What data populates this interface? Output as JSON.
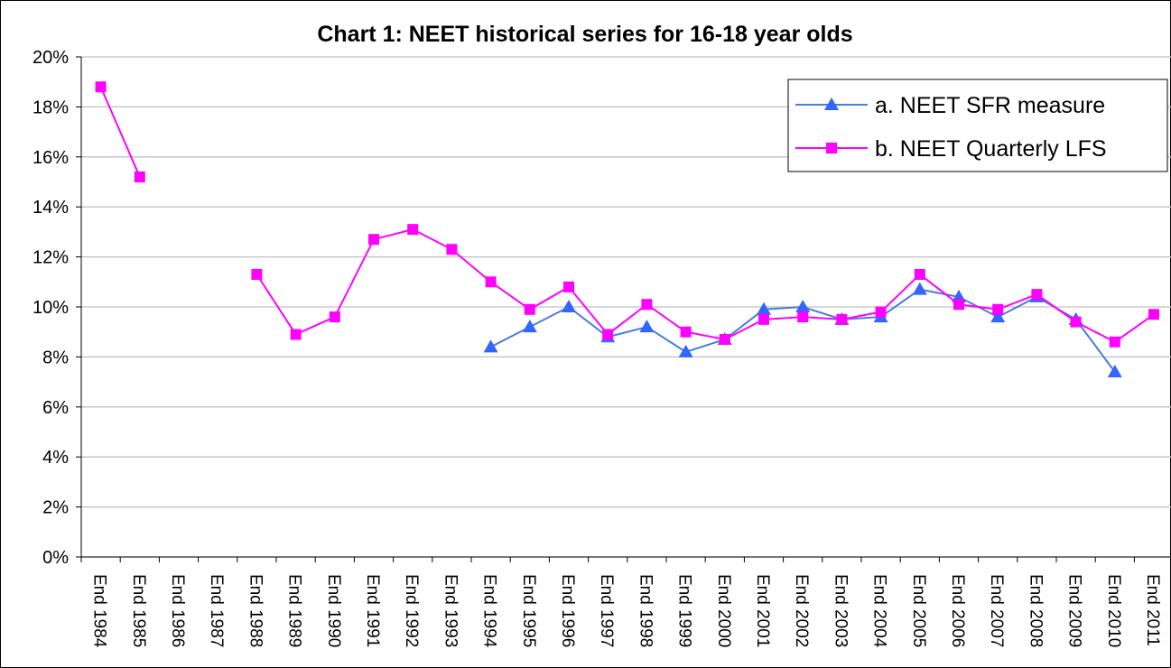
{
  "chart_data": {
    "type": "line",
    "title": "Chart 1: NEET historical series for 16-18 year olds",
    "categories": [
      "End 1984",
      "End 1985",
      "End 1986",
      "End 1987",
      "End 1988",
      "End 1989",
      "End 1990",
      "End 1991",
      "End 1992",
      "End 1993",
      "End 1994",
      "End 1995",
      "End 1996",
      "End 1997",
      "End 1998",
      "End 1999",
      "End 2000",
      "End 2001",
      "End 2002",
      "End 2003",
      "End 2004",
      "End 2005",
      "End 2006",
      "End 2007",
      "End 2008",
      "End 2009",
      "End 2010",
      "End 2011"
    ],
    "series": [
      {
        "name": "a. NEET SFR measure",
        "color": "#3366ff",
        "marker": "triangle",
        "line_color": "#4a7bdc",
        "values": [
          null,
          null,
          null,
          null,
          null,
          null,
          null,
          null,
          null,
          null,
          8.4,
          9.2,
          10.0,
          8.8,
          9.2,
          8.2,
          8.7,
          9.9,
          10.0,
          9.5,
          9.6,
          10.7,
          10.4,
          9.6,
          10.4,
          9.5,
          7.4,
          null
        ]
      },
      {
        "name": "b. NEET Quarterly LFS",
        "color": "#ff00ff",
        "marker": "square",
        "line_color": "#ff00ff",
        "values": [
          18.8,
          15.2,
          null,
          null,
          11.3,
          8.9,
          9.6,
          12.7,
          13.1,
          12.3,
          11.0,
          9.9,
          10.8,
          8.9,
          10.1,
          9.0,
          8.7,
          9.5,
          9.6,
          9.5,
          9.8,
          11.3,
          10.1,
          9.9,
          10.5,
          9.4,
          8.6,
          9.7
        ]
      }
    ],
    "ylim": [
      0,
      20
    ],
    "yticks": [
      {
        "value": 0,
        "label": "0%"
      },
      {
        "value": 2,
        "label": "2%"
      },
      {
        "value": 4,
        "label": "4%"
      },
      {
        "value": 6,
        "label": "6%"
      },
      {
        "value": 8,
        "label": "8%"
      },
      {
        "value": 10,
        "label": "10%"
      },
      {
        "value": 12,
        "label": "12%"
      },
      {
        "value": 14,
        "label": "14%"
      },
      {
        "value": 16,
        "label": "16%"
      },
      {
        "value": 18,
        "label": "18%"
      },
      {
        "value": 20,
        "label": "20%"
      }
    ],
    "grid": true,
    "legend": "top-right"
  }
}
